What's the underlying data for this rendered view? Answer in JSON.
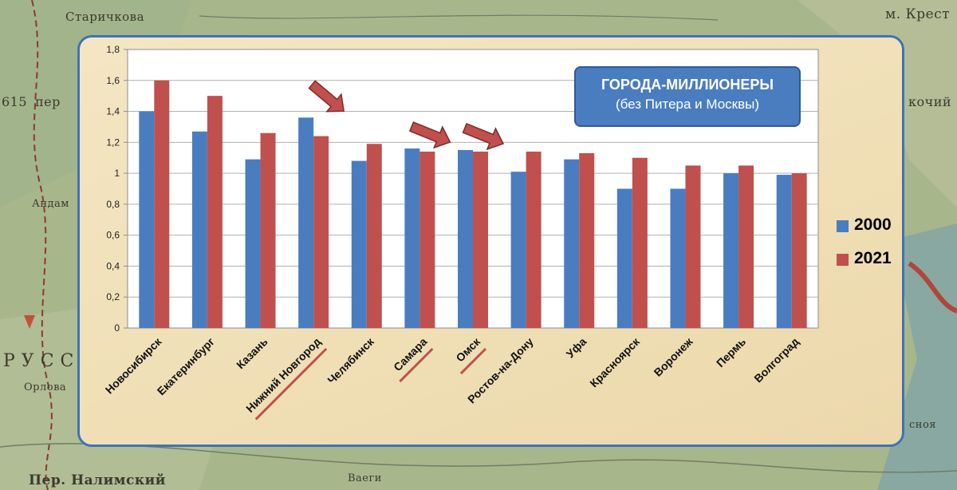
{
  "chart_data": {
    "type": "bar",
    "title": "ГОРОДА-МИЛЛИОНЕРЫ",
    "subtitle": "(без Питера и Москвы)",
    "categories": [
      "Новосибирск",
      "Екатеринбург",
      "Казань",
      "Нижний Новгород",
      "Челябинск",
      "Самара",
      "Омск",
      "Ростов-на-Дону",
      "Уфа",
      "Красноярск",
      "Воронеж",
      "Пермь",
      "Волгоград"
    ],
    "series": [
      {
        "name": "2000",
        "color": "#4a7dc0",
        "values": [
          1.4,
          1.27,
          1.09,
          1.36,
          1.08,
          1.16,
          1.15,
          1.01,
          1.09,
          0.9,
          0.9,
          1.0,
          0.99
        ]
      },
      {
        "name": "2021",
        "color": "#c0504d",
        "values": [
          1.6,
          1.5,
          1.26,
          1.24,
          1.19,
          1.14,
          1.14,
          1.14,
          1.13,
          1.1,
          1.05,
          1.05,
          1.0
        ]
      }
    ],
    "yticks": [
      "0",
      "0,2",
      "0,4",
      "0,6",
      "0,8",
      "1",
      "1,2",
      "1,4",
      "1,6",
      "1,8"
    ],
    "ylim": [
      0,
      1.8
    ],
    "grid": true,
    "legend": "right",
    "highlighted": [
      "Нижний Новгород",
      "Самара",
      "Омск"
    ]
  },
  "map_labels": [
    "Старичкова",
    "615",
    "пер",
    "м. Крест",
    "кочий",
    "Андам",
    "РУСС",
    "Пер. Налимский",
    "Ваеги",
    "сноя",
    "Орлова"
  ],
  "colors": {
    "arrow": "#c0504d",
    "underline": "#c0504d",
    "plot_bg": "#ffffff",
    "grid": "#b0b0b0"
  }
}
